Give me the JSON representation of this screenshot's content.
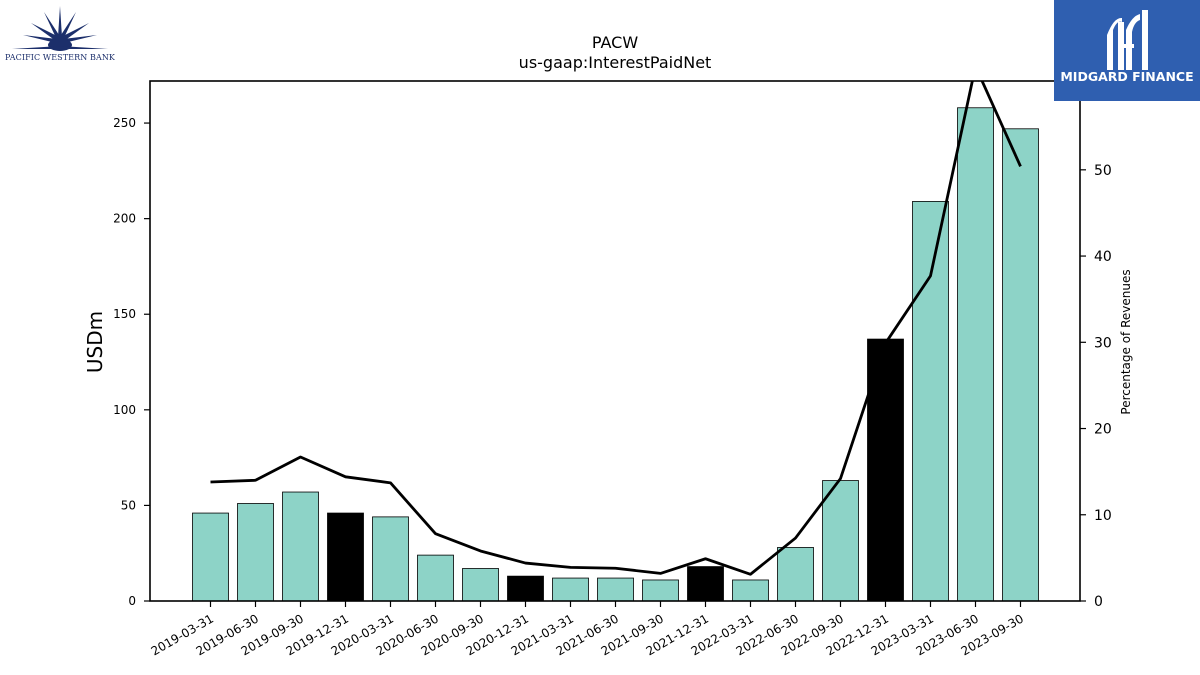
{
  "brand_left": {
    "name": "PACIFIC WESTERN BANK",
    "icon": "sunburst-icon",
    "color": "#1c2f6b"
  },
  "brand_right": {
    "name": "MIDGARD FINANCE",
    "icon": "midgard-logo-icon",
    "bg_color": "#2f5fb0"
  },
  "chart_data": {
    "type": "bar",
    "title": "PACW",
    "subtitle": "us-gaap:InterestPaidNet",
    "ylabel": "USDm",
    "y2label": "Percentage of Revenues",
    "ylim": [
      0,
      272
    ],
    "y2lim": [
      0,
      60.3
    ],
    "yticks": [
      0,
      50,
      100,
      150,
      200,
      250
    ],
    "y2ticks": [
      0,
      10,
      20,
      30,
      40,
      50
    ],
    "categories": [
      "2019-03-31",
      "2019-06-30",
      "2019-09-30",
      "2019-12-31",
      "2020-03-31",
      "2020-06-30",
      "2020-09-30",
      "2020-12-31",
      "2021-03-31",
      "2021-06-30",
      "2021-09-30",
      "2021-12-31",
      "2022-03-31",
      "2022-06-30",
      "2022-09-30",
      "2022-12-31",
      "2023-03-31",
      "2023-06-30",
      "2023-09-30"
    ],
    "series": [
      {
        "kind": "bar",
        "axis": "left",
        "values": [
          46,
          51,
          57,
          46,
          44,
          24,
          17,
          13,
          12,
          12,
          11,
          18,
          11,
          28,
          63,
          137,
          209,
          258,
          247
        ],
        "colors": [
          "#8dd3c7",
          "#8dd3c7",
          "#8dd3c7",
          "#000000",
          "#8dd3c7",
          "#8dd3c7",
          "#8dd3c7",
          "#000000",
          "#8dd3c7",
          "#8dd3c7",
          "#8dd3c7",
          "#000000",
          "#8dd3c7",
          "#8dd3c7",
          "#8dd3c7",
          "#000000",
          "#8dd3c7",
          "#8dd3c7",
          "#8dd3c7"
        ]
      },
      {
        "kind": "line",
        "axis": "right",
        "color": "#000000",
        "values": [
          13.8,
          14.0,
          16.7,
          14.4,
          13.7,
          7.8,
          5.8,
          4.4,
          3.9,
          3.8,
          3.2,
          4.9,
          3.1,
          7.3,
          14.2,
          29.9,
          37.7,
          62.0,
          50.4
        ]
      }
    ],
    "grid": false
  }
}
